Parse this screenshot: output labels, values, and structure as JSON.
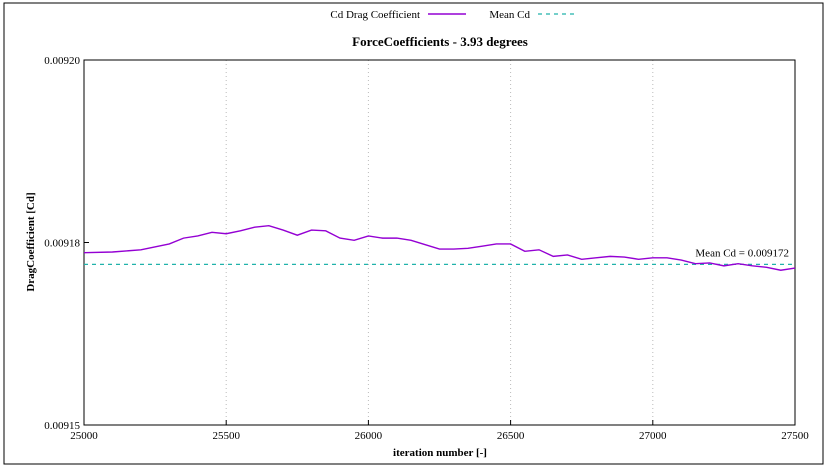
{
  "chart_data": {
    "type": "line",
    "title": "ForceCoefficients - 3.93 degrees",
    "xlabel": "iteration number [-]",
    "ylabel": "DragCoefficient [Cd]",
    "x": [
      25000,
      25100,
      25200,
      25300,
      25350,
      25400,
      25450,
      25500,
      25550,
      25600,
      25650,
      25700,
      25750,
      25800,
      25850,
      25900,
      25950,
      26000,
      26050,
      26100,
      26150,
      26200,
      26250,
      26300,
      26350,
      26400,
      26450,
      26500,
      26550,
      26600,
      26650,
      26700,
      26750,
      26800,
      26850,
      26900,
      26950,
      27000,
      27050,
      27100,
      27150,
      27200,
      27250,
      27300,
      27350,
      27400,
      27450,
      27500
    ],
    "series": [
      {
        "name": "Cd Drag Coefficient",
        "color": "#9400d3",
        "values": [
          0.0091736,
          0.0091737,
          0.009174,
          0.0091748,
          0.0091756,
          0.0091759,
          0.0091764,
          0.0091762,
          0.0091766,
          0.0091771,
          0.0091773,
          0.0091767,
          0.009176,
          0.0091767,
          0.0091766,
          0.0091756,
          0.0091753,
          0.0091759,
          0.0091756,
          0.0091756,
          0.0091753,
          0.0091747,
          0.0091741,
          0.0091741,
          0.0091742,
          0.0091745,
          0.0091748,
          0.0091748,
          0.0091738,
          0.009174,
          0.0091731,
          0.0091733,
          0.0091727,
          0.0091729,
          0.0091731,
          0.009173,
          0.0091727,
          0.0091729,
          0.0091729,
          0.0091726,
          0.0091721,
          0.0091722,
          0.0091718,
          0.0091721,
          0.0091718,
          0.0091716,
          0.0091712,
          0.0091715
        ]
      }
    ],
    "mean_line": {
      "name": "Mean Cd",
      "color": "#20b2aa",
      "value": 0.009172,
      "label": "Mean Cd = 0.009172"
    },
    "xlim": [
      25000,
      27500
    ],
    "xticks": [
      25000,
      25500,
      26000,
      26500,
      27000,
      27500
    ],
    "ylim": [
      0.00915,
      0.0092
    ],
    "yticks": [
      {
        "value": 0.00915,
        "label": "0.00915"
      },
      {
        "value": 0.009175,
        "label": "0.00918"
      },
      {
        "value": 0.0092,
        "label": "0.00920"
      }
    ],
    "grid": true
  }
}
